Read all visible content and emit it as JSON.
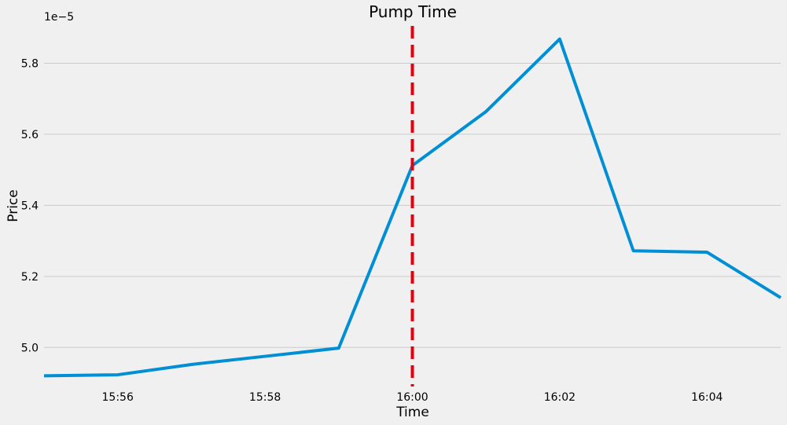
{
  "chart_data": {
    "type": "line",
    "title": "Pump Time",
    "xlabel": "Time",
    "ylabel": "Price",
    "y_offset_label": "1e−5",
    "x": [
      "15:55",
      "15:56",
      "15:57",
      "15:58",
      "15:59",
      "16:00",
      "16:01",
      "16:02",
      "16:03",
      "16:04",
      "16:05"
    ],
    "x_minutes": [
      0,
      1,
      2,
      3,
      4,
      5,
      6,
      7,
      8,
      9,
      10
    ],
    "series": [
      {
        "values": [
          4.92,
          4.923,
          4.952,
          4.975,
          4.998,
          5.512,
          5.664,
          5.868,
          5.272,
          5.268,
          5.14
        ],
        "color": "#008fd5"
      }
    ],
    "xlim": [
      0,
      10
    ],
    "ylim": [
      4.89,
      5.905
    ],
    "x_ticks": [
      {
        "minutes": 1,
        "label": "15:56"
      },
      {
        "minutes": 3,
        "label": "15:58"
      },
      {
        "minutes": 5,
        "label": "16:00"
      },
      {
        "minutes": 7,
        "label": "16:02"
      },
      {
        "minutes": 9,
        "label": "16:04"
      }
    ],
    "y_ticks": [
      {
        "value": 5.0,
        "label": "5.0"
      },
      {
        "value": 5.2,
        "label": "5.2"
      },
      {
        "value": 5.4,
        "label": "5.4"
      },
      {
        "value": 5.6,
        "label": "5.6"
      },
      {
        "value": 5.8,
        "label": "5.8"
      }
    ],
    "annotations": [
      {
        "type": "vertical-dashed-line",
        "x_minutes": 5,
        "color": "#e5000b"
      }
    ],
    "grid": {
      "horizontal": true,
      "vertical": false
    },
    "background": "#f0f0f0"
  }
}
